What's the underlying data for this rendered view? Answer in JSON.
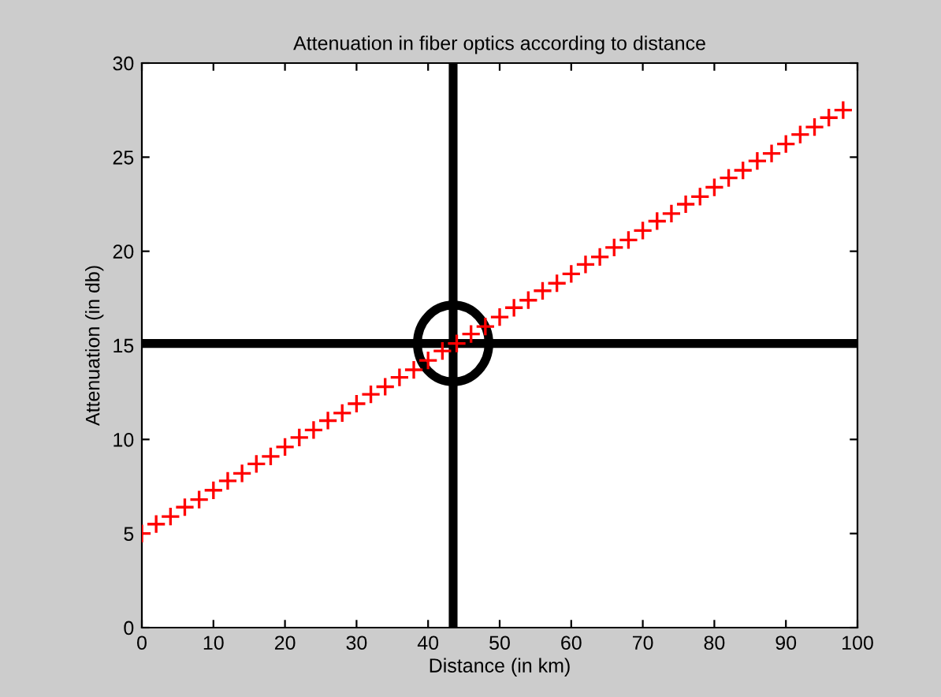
{
  "chart_data": {
    "type": "scatter",
    "title": "Attenuation in fiber optics according to distance",
    "xlabel": "Distance (in km)",
    "ylabel": "Attenuation (in db)",
    "x": [
      0,
      2,
      4,
      6,
      8,
      10,
      12,
      14,
      16,
      18,
      20,
      22,
      24,
      26,
      28,
      30,
      32,
      34,
      36,
      38,
      40,
      42,
      44,
      46,
      48,
      50,
      52,
      54,
      56,
      58,
      60,
      62,
      64,
      66,
      68,
      70,
      72,
      74,
      76,
      78,
      80,
      82,
      84,
      86,
      88,
      90,
      92,
      94,
      96,
      98
    ],
    "values": [
      5,
      5.5,
      5.9,
      6.4,
      6.8,
      7.3,
      7.8,
      8.2,
      8.7,
      9.1,
      9.6,
      10.1,
      10.5,
      11,
      11.4,
      11.9,
      12.4,
      12.8,
      13.3,
      13.7,
      14.2,
      14.7,
      15.1,
      15.6,
      16,
      16.5,
      17,
      17.4,
      17.9,
      18.3,
      18.8,
      19.3,
      19.7,
      20.2,
      20.6,
      21.1,
      21.6,
      22,
      22.5,
      22.9,
      23.4,
      23.9,
      24.3,
      24.8,
      25.2,
      25.7,
      26.2,
      26.6,
      27.1,
      27.5
    ],
    "color": "#ff0000",
    "marker": "cross",
    "xlim": [
      0,
      100
    ],
    "ylim": [
      0,
      30
    ],
    "xticks": [
      0,
      10,
      20,
      30,
      40,
      50,
      60,
      70,
      80,
      90,
      100
    ],
    "yticks": [
      0,
      5,
      10,
      15,
      20,
      25,
      30
    ],
    "grid": false,
    "ref_lines": [
      {
        "axis": "x",
        "value": 43.5,
        "color": "#000000"
      },
      {
        "axis": "y",
        "value": 15.1,
        "color": "#000000"
      }
    ]
  }
}
